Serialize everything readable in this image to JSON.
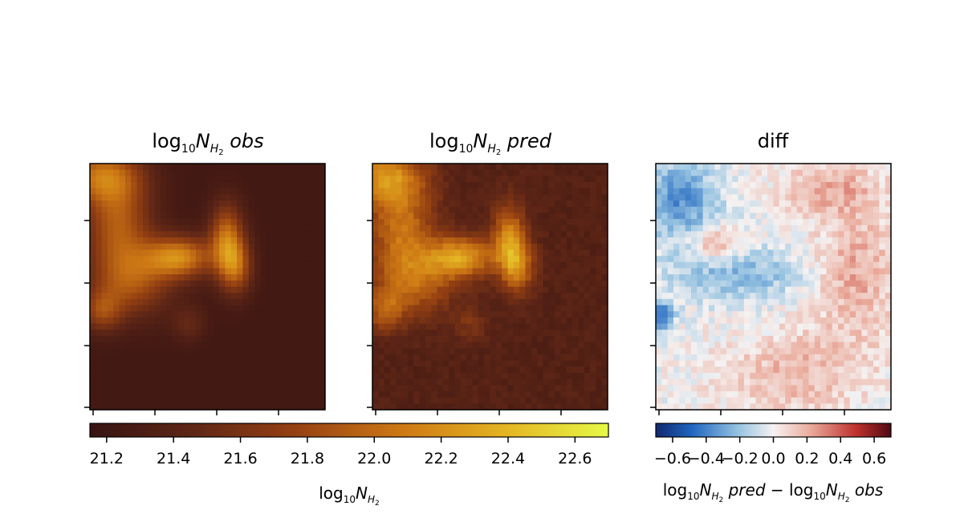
{
  "chart_data": [
    {
      "type": "heatmap",
      "panel": "obs",
      "title": {
        "base": "log",
        "sub": "10",
        "sym": "N",
        "symsub": "H",
        "symsub2": "2",
        "suffix": " obs"
      },
      "grid": [
        40,
        40
      ],
      "colormap": "afmhot-like",
      "vmin": 21.15,
      "vmax": 22.7
    },
    {
      "type": "heatmap",
      "panel": "pred",
      "title": {
        "base": "log",
        "sub": "10",
        "sym": "N",
        "symsub": "H",
        "symsub2": "2",
        "suffix": " pred"
      },
      "grid": [
        40,
        40
      ],
      "colormap": "afmhot-like",
      "vmin": 21.15,
      "vmax": 22.7
    },
    {
      "type": "heatmap",
      "panel": "diff",
      "title": {
        "text": "diff"
      },
      "grid": [
        40,
        40
      ],
      "colormap": "RdBu_r",
      "vmin": -0.7,
      "vmax": 0.7
    }
  ],
  "colorbar_main": {
    "ticks": [
      "21.2",
      "21.4",
      "21.6",
      "21.8",
      "22.0",
      "22.2",
      "22.4",
      "22.6"
    ],
    "tick_values": [
      21.2,
      21.4,
      21.6,
      21.8,
      22.0,
      22.2,
      22.4,
      22.6
    ],
    "range": [
      21.15,
      22.7
    ],
    "label": {
      "base": "log",
      "sub": "10",
      "sym": "N",
      "symsub": "H",
      "symsub2": "2"
    }
  },
  "colorbar_diff": {
    "ticks": [
      "−0.6",
      "−0.4",
      "−0.2",
      "0.0",
      "0.2",
      "0.4",
      "0.6"
    ],
    "tick_values": [
      -0.6,
      -0.4,
      -0.2,
      0.0,
      0.2,
      0.4,
      0.6
    ],
    "range": [
      -0.7,
      0.7
    ],
    "label": {
      "left_base": "log",
      "left_sub": "10",
      "sym": "N",
      "symsub": "H",
      "symsub2": "2",
      "left_suffix": " pred",
      "minus": " − ",
      "right_base": "log",
      "right_sub": "10",
      "right_suffix": " obs"
    }
  }
}
